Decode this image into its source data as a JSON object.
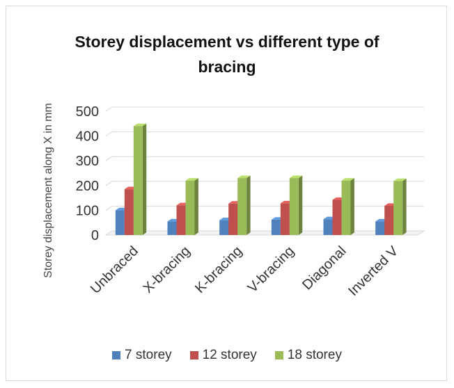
{
  "chart_data": {
    "type": "bar",
    "title": "Storey displacement vs different type of bracing",
    "title_lines": [
      "Storey displacement vs different type of",
      "bracing"
    ],
    "xlabel": "",
    "ylabel": "Storey displacement along X in mm",
    "ylim": [
      0,
      500
    ],
    "yticks": [
      "0",
      "100",
      "200",
      "300",
      "400",
      "500"
    ],
    "categories": [
      "Unbraced",
      "X-bracing",
      "K-bracing",
      "V-bracing",
      "Diagonal",
      "Inverted V"
    ],
    "series": [
      {
        "name": "7 storey",
        "color": "#4f81bd",
        "values": [
          100,
          55,
          60,
          62,
          64,
          55
        ]
      },
      {
        "name": "12 storey",
        "color": "#c0504d",
        "values": [
          185,
          120,
          127,
          128,
          142,
          118
        ]
      },
      {
        "name": "18 storey",
        "color": "#9bbb59",
        "values": [
          440,
          220,
          230,
          230,
          220,
          218
        ]
      }
    ],
    "grid": true,
    "legend": "bottom"
  }
}
